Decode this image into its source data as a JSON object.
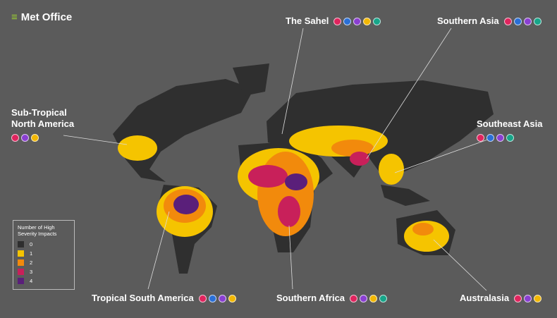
{
  "header": {
    "logo": "Met Office"
  },
  "regions": [
    {
      "name": "The Sahel"
    },
    {
      "name": "Southern Asia"
    },
    {
      "name": "Sub-Tropical North America"
    },
    {
      "name": "Southeast Asia"
    },
    {
      "name": "Tropical South America"
    },
    {
      "name": "Southern Africa"
    },
    {
      "name": "Australasia"
    }
  ],
  "legend": {
    "title": "Number of High Severity Impacts",
    "items": [
      {
        "label": 0,
        "color": "#2e2e2e"
      },
      {
        "label": 1,
        "color": "#f5c400"
      },
      {
        "label": 2,
        "color": "#f28a0c"
      },
      {
        "label": 3,
        "color": "#c8205a"
      },
      {
        "label": 4,
        "color": "#5a1f7a"
      }
    ]
  }
}
